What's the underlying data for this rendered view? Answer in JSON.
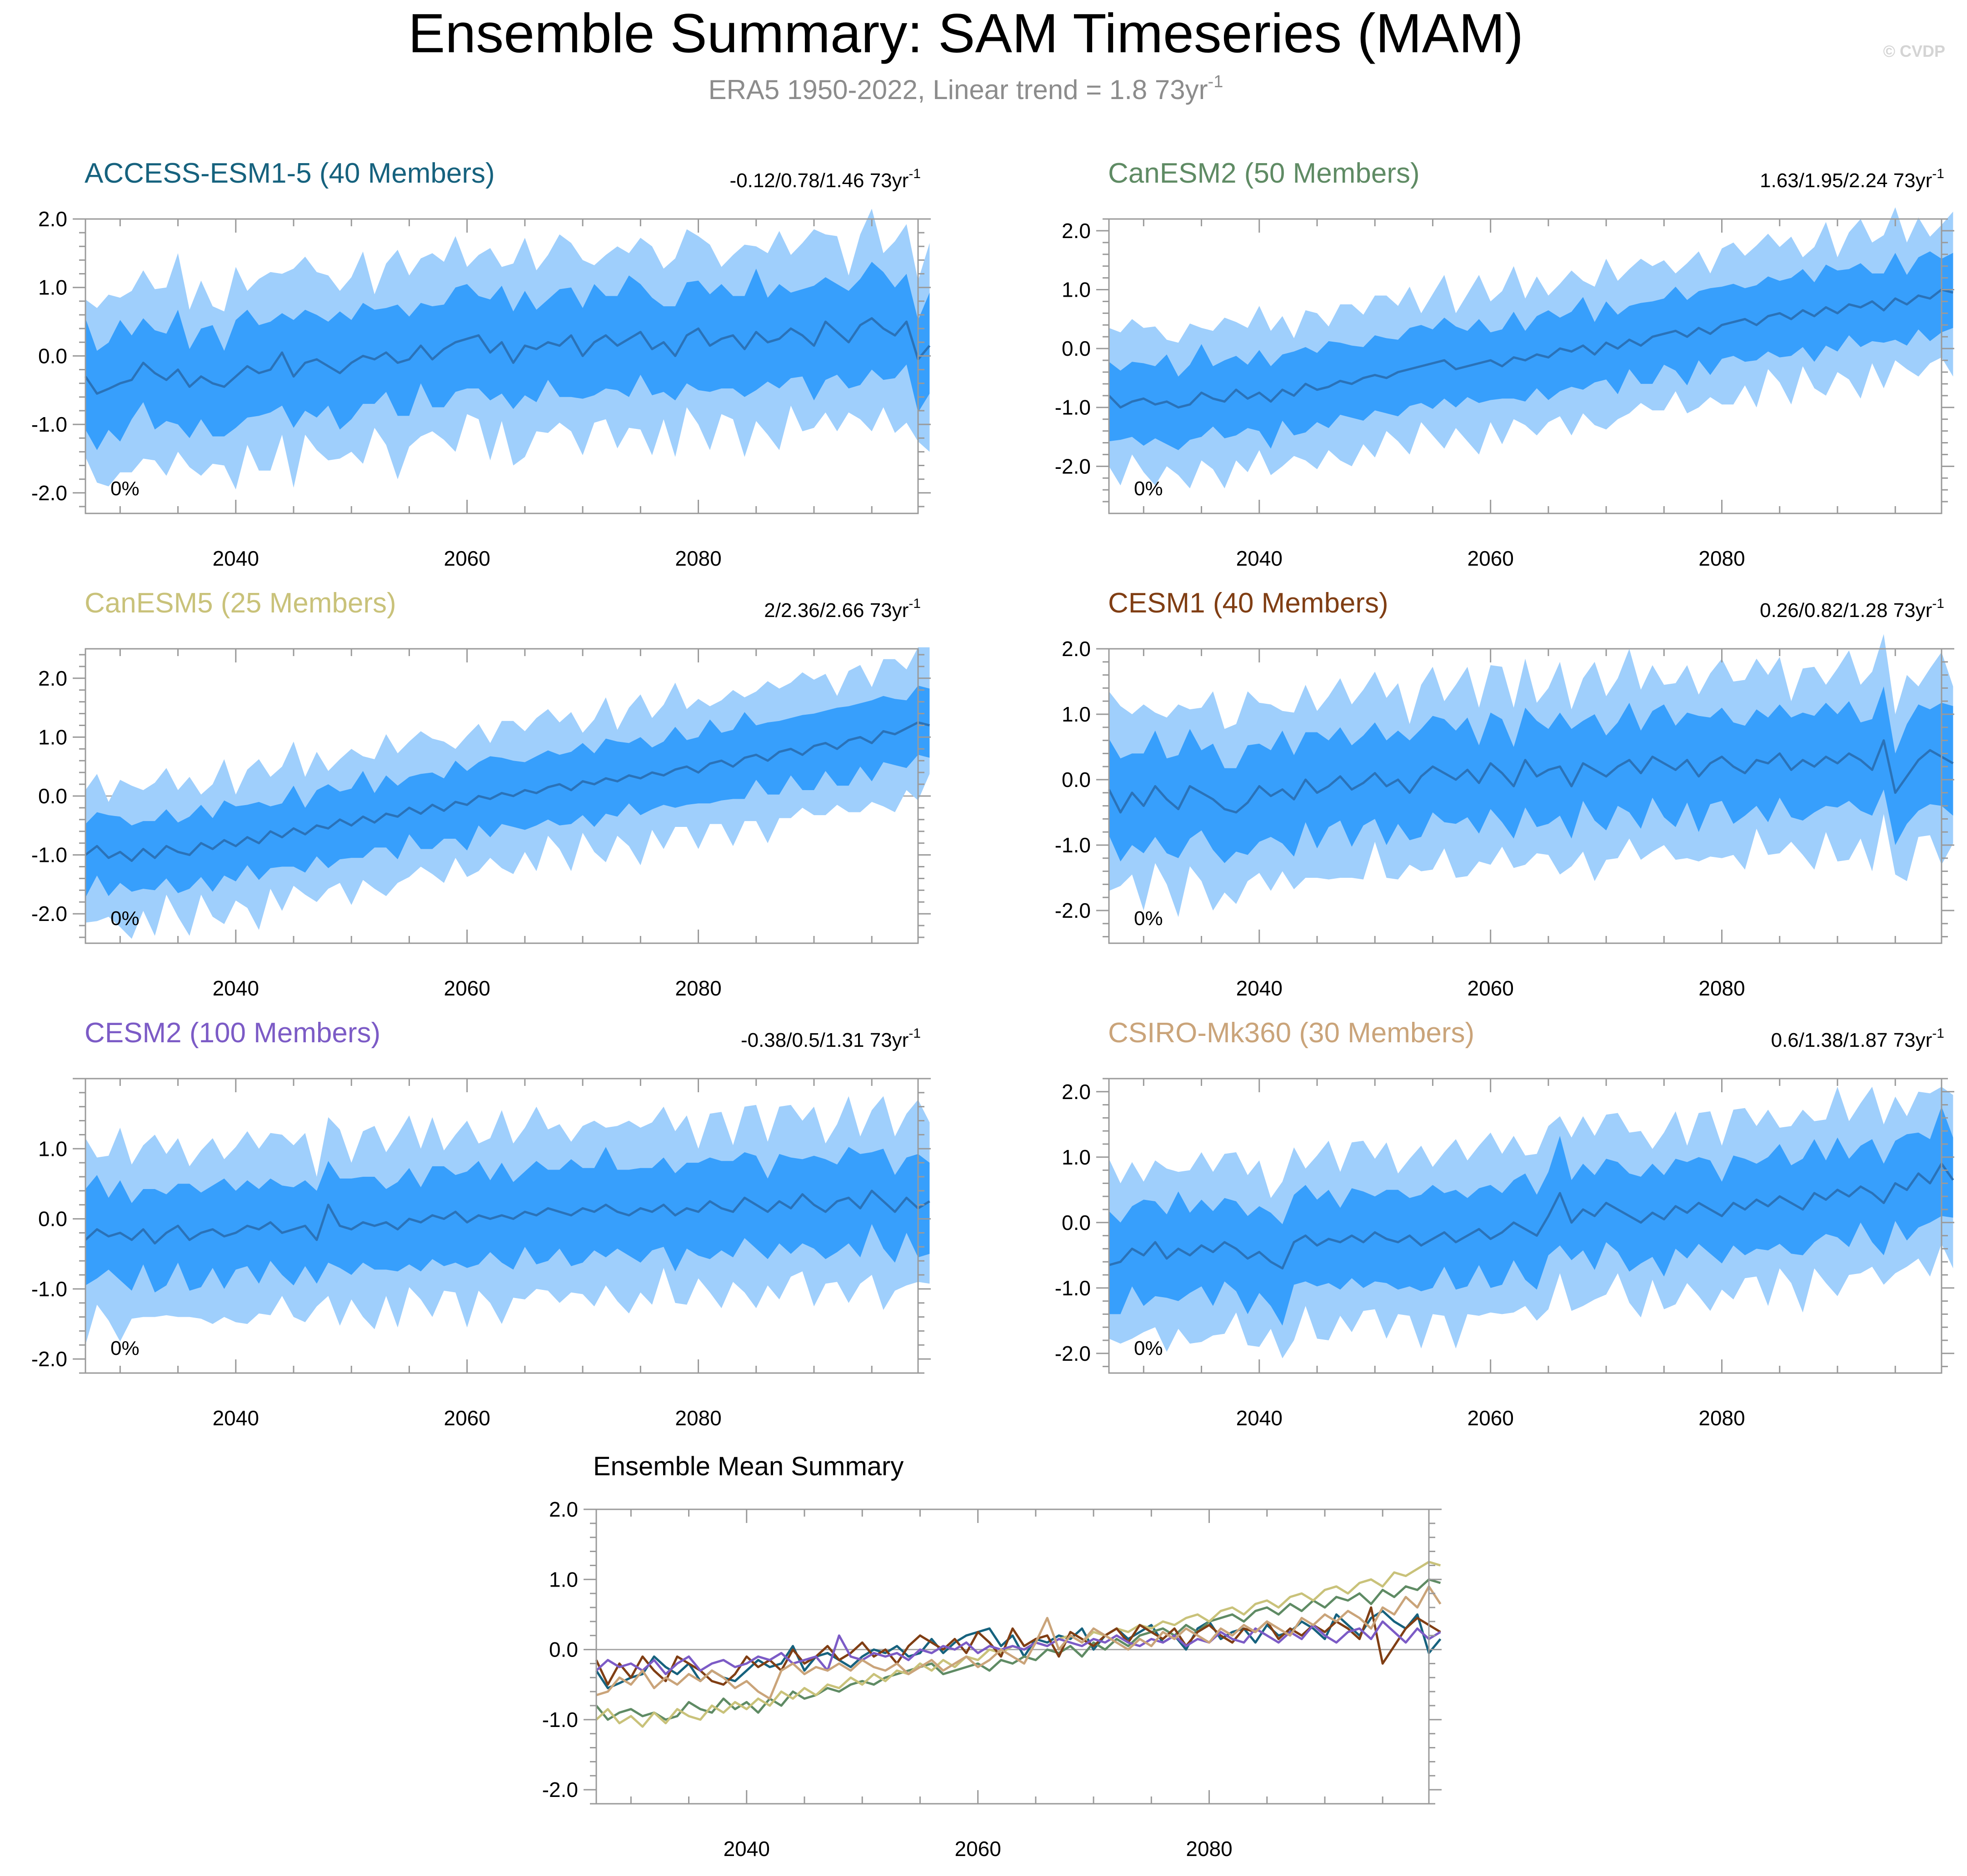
{
  "title": "Ensemble Summary: SAM Timeseries (MAM)",
  "subtitle": {
    "text": "ERA5 1950-2022, Linear trend = 1.8 73yr",
    "sup": "-1"
  },
  "credit": "© CVDP",
  "mean_panel_title": "Ensemble Mean Summary",
  "style": {
    "outer_band": "#9fcffc",
    "inner_band": "#379ffc",
    "mean_line": "#2a72b8",
    "title_color": "#000000",
    "subtitle_color": "#8c8c8c",
    "credit_color": "#d4d4d4",
    "axis_color": "#9a9a9a",
    "zero_line": "#a8a8a8"
  },
  "chart_data": [
    {
      "type": "area",
      "id": "access",
      "title": "ACCESS-ESM1-5 (40 Members)",
      "title_color": "#16627e",
      "trend": "-0.12/0.78/1.46 73yr",
      "trend_sup": "-1",
      "pct": "0%",
      "x_start": 2027,
      "x_end": 2099,
      "xlim": [
        2027,
        2099
      ],
      "xticks": [
        "2040",
        "2060",
        "2080"
      ],
      "ylim": [
        -2.3,
        2.0
      ],
      "yticks": [
        "2.0",
        "1.0",
        "0.0",
        "-1.0",
        "-2.0"
      ],
      "mean": [
        -0.3,
        -0.55,
        -0.48,
        -0.4,
        -0.35,
        -0.1,
        -0.25,
        -0.35,
        -0.2,
        -0.45,
        -0.3,
        -0.4,
        -0.45,
        -0.3,
        -0.15,
        -0.25,
        -0.2,
        0.05,
        -0.3,
        -0.1,
        -0.05,
        -0.15,
        -0.25,
        -0.1,
        0.0,
        -0.05,
        0.05,
        -0.1,
        -0.05,
        0.15,
        -0.05,
        0.1,
        0.2,
        0.25,
        0.3,
        0.05,
        0.2,
        -0.1,
        0.15,
        0.1,
        0.2,
        0.15,
        0.3,
        0.0,
        0.2,
        0.3,
        0.15,
        0.25,
        0.35,
        0.1,
        0.2,
        0.0,
        0.3,
        0.4,
        0.15,
        0.25,
        0.3,
        0.1,
        0.35,
        0.2,
        0.25,
        0.4,
        0.3,
        0.15,
        0.5,
        0.35,
        0.2,
        0.45,
        0.55,
        0.4,
        0.3,
        0.5,
        -0.05,
        0.15
      ],
      "spread": [
        0.75,
        0.7,
        0.65,
        0.8,
        0.7,
        0.6,
        0.75,
        0.7,
        0.8,
        0.65,
        0.7,
        0.75,
        0.6,
        0.8,
        0.7,
        0.75,
        0.65,
        0.7,
        0.85,
        0.7,
        0.75,
        0.65,
        0.8,
        0.7,
        0.75,
        0.6,
        0.7,
        0.8,
        0.75,
        0.65,
        0.7,
        0.75,
        0.8,
        0.7,
        0.65,
        0.75,
        0.7,
        0.8,
        0.75,
        0.7,
        0.65,
        0.75,
        0.8,
        0.7,
        0.75,
        0.65,
        0.7,
        0.8,
        0.75,
        0.7,
        0.65,
        0.75,
        0.7,
        0.8,
        0.75,
        0.7,
        0.65,
        0.75,
        0.8,
        0.7,
        0.75,
        0.65,
        0.7,
        0.8,
        0.75,
        0.7,
        0.65,
        0.75,
        0.8,
        0.7,
        0.75,
        0.65,
        0.7,
        0.8
      ]
    },
    {
      "type": "area",
      "id": "canesm2",
      "title": "CanESM2 (50 Members)",
      "title_color": "#5f8b64",
      "trend": "1.63/1.95/2.24 73yr",
      "trend_sup": "-1",
      "pct": "0%",
      "x_start": 2027,
      "x_end": 2099,
      "xlim": [
        2027,
        2099
      ],
      "xticks": [
        "2040",
        "2060",
        "2080"
      ],
      "ylim": [
        -2.8,
        2.2
      ],
      "yticks": [
        "2.0",
        "1.0",
        "0.0",
        "-1.0",
        "-2.0"
      ],
      "mean": [
        -0.8,
        -1.0,
        -0.9,
        -0.85,
        -0.95,
        -0.9,
        -1.0,
        -0.95,
        -0.75,
        -0.85,
        -0.9,
        -0.7,
        -0.85,
        -0.75,
        -0.9,
        -0.7,
        -0.8,
        -0.6,
        -0.7,
        -0.65,
        -0.55,
        -0.6,
        -0.5,
        -0.45,
        -0.5,
        -0.4,
        -0.35,
        -0.3,
        -0.25,
        -0.2,
        -0.35,
        -0.3,
        -0.25,
        -0.2,
        -0.3,
        -0.15,
        -0.2,
        -0.1,
        -0.15,
        0.0,
        -0.05,
        0.05,
        -0.1,
        0.1,
        0.0,
        0.15,
        0.05,
        0.2,
        0.25,
        0.3,
        0.2,
        0.35,
        0.25,
        0.4,
        0.45,
        0.5,
        0.4,
        0.55,
        0.6,
        0.5,
        0.65,
        0.55,
        0.7,
        0.6,
        0.75,
        0.7,
        0.8,
        0.65,
        0.85,
        0.75,
        0.9,
        0.85,
        1.0,
        0.95
      ],
      "spread": [
        0.7,
        0.65,
        0.6,
        0.7,
        0.65,
        0.7,
        0.6,
        0.65,
        0.7,
        0.6,
        0.65,
        0.7,
        0.6,
        0.65,
        0.7,
        0.6,
        0.65,
        0.7,
        0.6,
        0.65,
        0.7,
        0.6,
        0.65,
        0.7,
        0.6,
        0.65,
        0.7,
        0.6,
        0.65,
        0.7,
        0.6,
        0.65,
        0.7,
        0.6,
        0.65,
        0.7,
        0.6,
        0.65,
        0.7,
        0.6,
        0.65,
        0.7,
        0.6,
        0.65,
        0.7,
        0.6,
        0.65,
        0.7,
        0.6,
        0.65,
        0.7,
        0.6,
        0.65,
        0.7,
        0.6,
        0.65,
        0.7,
        0.6,
        0.65,
        0.7,
        0.6,
        0.65,
        0.7,
        0.6,
        0.65,
        0.7,
        0.6,
        0.65,
        0.7,
        0.6,
        0.65,
        0.7,
        0.6,
        0.65
      ]
    },
    {
      "type": "area",
      "id": "canesm5",
      "title": "CanESM5 (25 Members)",
      "title_color": "#c9c27a",
      "trend": "2/2.36/2.66 73yr",
      "trend_sup": "-1",
      "pct": "0%",
      "x_start": 2027,
      "x_end": 2099,
      "xlim": [
        2027,
        2099
      ],
      "xticks": [
        "2040",
        "2060",
        "2080"
      ],
      "ylim": [
        -2.5,
        2.5
      ],
      "yticks": [
        "2.0",
        "1.0",
        "0.0",
        "-1.0",
        "-2.0"
      ],
      "mean": [
        -1.0,
        -0.85,
        -1.05,
        -0.95,
        -1.1,
        -0.9,
        -1.05,
        -0.85,
        -0.95,
        -1.0,
        -0.8,
        -0.9,
        -0.75,
        -0.85,
        -0.7,
        -0.8,
        -0.6,
        -0.7,
        -0.55,
        -0.65,
        -0.5,
        -0.55,
        -0.4,
        -0.5,
        -0.35,
        -0.45,
        -0.3,
        -0.35,
        -0.2,
        -0.3,
        -0.15,
        -0.25,
        -0.1,
        -0.15,
        0.0,
        -0.05,
        0.05,
        0.0,
        0.1,
        0.05,
        0.15,
        0.2,
        0.1,
        0.25,
        0.2,
        0.3,
        0.25,
        0.35,
        0.3,
        0.4,
        0.35,
        0.45,
        0.5,
        0.4,
        0.55,
        0.6,
        0.5,
        0.65,
        0.7,
        0.6,
        0.75,
        0.8,
        0.7,
        0.85,
        0.9,
        0.8,
        0.95,
        1.0,
        0.9,
        1.1,
        1.05,
        1.15,
        1.25,
        1.2
      ],
      "spread": [
        0.6,
        0.55,
        0.6,
        0.65,
        0.55,
        0.6,
        0.65,
        0.55,
        0.6,
        0.65,
        0.55,
        0.6,
        0.65,
        0.55,
        0.6,
        0.65,
        0.55,
        0.6,
        0.65,
        0.55,
        0.6,
        0.65,
        0.55,
        0.6,
        0.65,
        0.55,
        0.6,
        0.65,
        0.55,
        0.6,
        0.65,
        0.55,
        0.6,
        0.65,
        0.55,
        0.6,
        0.65,
        0.55,
        0.6,
        0.65,
        0.55,
        0.6,
        0.65,
        0.55,
        0.6,
        0.65,
        0.55,
        0.6,
        0.65,
        0.55,
        0.6,
        0.65,
        0.55,
        0.6,
        0.65,
        0.55,
        0.6,
        0.65,
        0.55,
        0.6,
        0.65,
        0.55,
        0.6,
        0.65,
        0.55,
        0.6,
        0.65,
        0.55,
        0.6,
        0.65,
        0.55,
        0.6,
        0.65,
        0.55
      ]
    },
    {
      "type": "area",
      "id": "cesm1",
      "title": "CESM1 (40 Members)",
      "title_color": "#803e14",
      "trend": "0.26/0.82/1.28 73yr",
      "trend_sup": "-1",
      "pct": "0%",
      "x_start": 2027,
      "x_end": 2099,
      "xlim": [
        2027,
        2099
      ],
      "xticks": [
        "2040",
        "2060",
        "2080"
      ],
      "ylim": [
        -2.5,
        2.0
      ],
      "yticks": [
        "2.0",
        "1.0",
        "0.0",
        "-1.0",
        "-2.0"
      ],
      "mean": [
        -0.15,
        -0.5,
        -0.2,
        -0.4,
        -0.1,
        -0.3,
        -0.45,
        -0.1,
        -0.2,
        -0.3,
        -0.45,
        -0.5,
        -0.35,
        -0.1,
        -0.25,
        -0.15,
        -0.3,
        0.0,
        -0.2,
        -0.1,
        0.05,
        -0.15,
        -0.05,
        0.1,
        -0.1,
        0.0,
        -0.2,
        0.05,
        0.2,
        0.1,
        0.0,
        0.15,
        -0.05,
        0.25,
        0.1,
        -0.1,
        0.3,
        0.05,
        0.15,
        0.2,
        -0.1,
        0.25,
        0.15,
        0.05,
        0.2,
        0.3,
        0.1,
        0.35,
        0.25,
        0.15,
        0.3,
        0.05,
        0.25,
        0.35,
        0.2,
        0.1,
        0.3,
        0.25,
        0.4,
        0.15,
        0.3,
        0.2,
        0.35,
        0.25,
        0.4,
        0.3,
        0.15,
        0.6,
        -0.2,
        0.05,
        0.3,
        0.45,
        0.35,
        0.25
      ],
      "spread": [
        0.8,
        0.75,
        0.7,
        0.8,
        0.75,
        0.7,
        0.8,
        0.75,
        0.7,
        0.8,
        0.75,
        0.7,
        0.8,
        0.75,
        0.7,
        0.8,
        0.75,
        0.7,
        0.8,
        0.75,
        0.7,
        0.8,
        0.75,
        0.7,
        0.8,
        0.75,
        0.7,
        0.8,
        0.75,
        0.7,
        0.8,
        0.75,
        0.7,
        0.8,
        0.75,
        0.7,
        0.8,
        0.75,
        0.7,
        0.8,
        0.75,
        0.7,
        0.8,
        0.75,
        0.7,
        0.8,
        0.75,
        0.7,
        0.8,
        0.75,
        0.7,
        0.8,
        0.75,
        0.7,
        0.8,
        0.75,
        0.7,
        0.8,
        0.75,
        0.7,
        0.8,
        0.75,
        0.7,
        0.8,
        0.75,
        0.7,
        0.8,
        0.75,
        0.7,
        0.8,
        0.75,
        0.7,
        0.8,
        0.75
      ]
    },
    {
      "type": "area",
      "id": "cesm2",
      "title": "CESM2 (100 Members)",
      "title_color": "#7c5bc6",
      "trend": "-0.38/0.5/1.31 73yr",
      "trend_sup": "-1",
      "pct": "0%",
      "x_start": 2027,
      "x_end": 2099,
      "xlim": [
        2027,
        2099
      ],
      "xticks": [
        "2040",
        "2060",
        "2080"
      ],
      "ylim": [
        -2.2,
        2.0
      ],
      "yticks": [
        "1.0",
        "0.0",
        "-1.0",
        "-2.0"
      ],
      "mean": [
        -0.3,
        -0.15,
        -0.25,
        -0.2,
        -0.3,
        -0.15,
        -0.35,
        -0.2,
        -0.1,
        -0.3,
        -0.2,
        -0.15,
        -0.25,
        -0.2,
        -0.1,
        -0.15,
        -0.05,
        -0.2,
        -0.15,
        -0.1,
        -0.3,
        0.2,
        -0.1,
        -0.15,
        -0.05,
        -0.1,
        -0.05,
        -0.15,
        0.0,
        -0.05,
        0.05,
        0.0,
        0.1,
        -0.05,
        0.05,
        0.0,
        0.05,
        0.0,
        0.1,
        0.05,
        0.15,
        0.1,
        0.05,
        0.15,
        0.1,
        0.2,
        0.1,
        0.05,
        0.15,
        0.1,
        0.2,
        0.05,
        0.15,
        0.1,
        0.25,
        0.15,
        0.1,
        0.3,
        0.2,
        0.1,
        0.25,
        0.15,
        0.35,
        0.2,
        0.1,
        0.25,
        0.3,
        0.15,
        0.4,
        0.25,
        0.1,
        0.3,
        0.15,
        0.25
      ],
      "spread": [
        0.7,
        0.65,
        0.6,
        0.7,
        0.65,
        0.6,
        0.7,
        0.65,
        0.6,
        0.7,
        0.65,
        0.6,
        0.7,
        0.65,
        0.6,
        0.7,
        0.65,
        0.6,
        0.7,
        0.65,
        0.6,
        0.7,
        0.65,
        0.6,
        0.7,
        0.65,
        0.6,
        0.7,
        0.65,
        0.6,
        0.7,
        0.65,
        0.6,
        0.7,
        0.65,
        0.6,
        0.7,
        0.65,
        0.6,
        0.7,
        0.65,
        0.6,
        0.7,
        0.65,
        0.6,
        0.7,
        0.65,
        0.6,
        0.7,
        0.65,
        0.6,
        0.7,
        0.65,
        0.6,
        0.7,
        0.65,
        0.6,
        0.7,
        0.65,
        0.6,
        0.7,
        0.65,
        0.6,
        0.7,
        0.65,
        0.6,
        0.7,
        0.65,
        0.6,
        0.7,
        0.65,
        0.6,
        0.7,
        0.65
      ]
    },
    {
      "type": "area",
      "id": "csiro",
      "title": "CSIRO-Mk360 (30 Members)",
      "title_color": "#caa47a",
      "trend": "0.6/1.38/1.87 73yr",
      "trend_sup": "-1",
      "pct": "0%",
      "x_start": 2027,
      "x_end": 2099,
      "xlim": [
        2027,
        2099
      ],
      "xticks": [
        "2040",
        "2060",
        "2080"
      ],
      "ylim": [
        -2.3,
        2.2
      ],
      "yticks": [
        "2.0",
        "1.0",
        "0.0",
        "-1.0",
        "-2.0"
      ],
      "mean": [
        -0.65,
        -0.6,
        -0.4,
        -0.5,
        -0.3,
        -0.55,
        -0.4,
        -0.5,
        -0.35,
        -0.45,
        -0.3,
        -0.4,
        -0.55,
        -0.45,
        -0.6,
        -0.7,
        -0.3,
        -0.2,
        -0.35,
        -0.25,
        -0.3,
        -0.2,
        -0.3,
        -0.15,
        -0.25,
        -0.3,
        -0.2,
        -0.35,
        -0.25,
        -0.15,
        -0.3,
        -0.2,
        -0.1,
        -0.25,
        -0.15,
        0.0,
        -0.1,
        -0.2,
        0.1,
        0.45,
        0.0,
        0.2,
        0.1,
        0.3,
        0.2,
        0.1,
        0.0,
        0.15,
        0.05,
        0.25,
        0.15,
        0.3,
        0.2,
        0.1,
        0.3,
        0.2,
        0.35,
        0.25,
        0.4,
        0.3,
        0.2,
        0.45,
        0.35,
        0.5,
        0.4,
        0.55,
        0.45,
        0.3,
        0.6,
        0.5,
        0.75,
        0.6,
        0.9,
        0.65
      ],
      "spread": [
        0.75,
        0.7,
        0.65,
        0.75,
        0.7,
        0.65,
        0.75,
        0.7,
        0.65,
        0.75,
        0.7,
        0.65,
        0.75,
        0.7,
        0.65,
        0.75,
        0.7,
        0.65,
        0.75,
        0.7,
        0.65,
        0.75,
        0.7,
        0.65,
        0.75,
        0.7,
        0.65,
        0.75,
        0.7,
        0.65,
        0.75,
        0.7,
        0.65,
        0.75,
        0.7,
        0.65,
        0.75,
        0.7,
        0.65,
        0.75,
        0.7,
        0.65,
        0.75,
        0.7,
        0.65,
        0.75,
        0.7,
        0.65,
        0.75,
        0.7,
        0.65,
        0.75,
        0.7,
        0.65,
        0.75,
        0.7,
        0.65,
        0.75,
        0.7,
        0.65,
        0.75,
        0.7,
        0.65,
        0.75,
        0.7,
        0.65,
        0.75,
        0.7,
        0.65,
        0.75,
        0.7,
        0.65,
        0.75,
        0.7
      ]
    },
    {
      "type": "line",
      "id": "ensemble-mean",
      "title": "Ensemble Mean Summary",
      "x_start": 2027,
      "x_end": 2099,
      "xlim": [
        2027,
        2099
      ],
      "xticks": [
        "2040",
        "2060",
        "2080"
      ],
      "ylim": [
        -2.2,
        2.0
      ],
      "yticks": [
        "2.0",
        "1.0",
        "0.0",
        "-1.0",
        "-2.0"
      ],
      "series_refs": [
        "access",
        "canesm2",
        "canesm5",
        "cesm1",
        "cesm2",
        "csiro"
      ]
    }
  ]
}
